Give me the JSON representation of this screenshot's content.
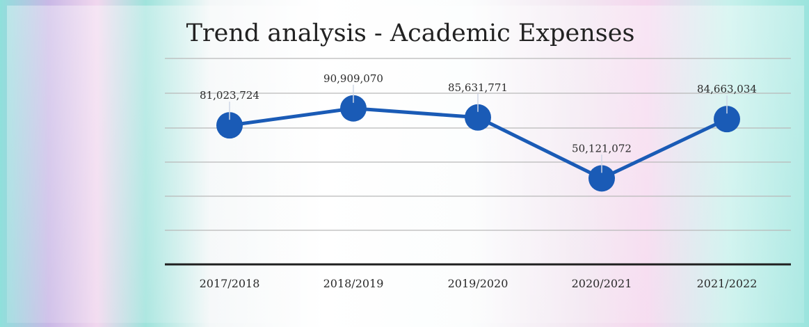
{
  "chart_data": {
    "type": "line",
    "title": "Trend analysis - Academic Expenses",
    "categories": [
      "2017/2018",
      "2018/2019",
      "2019/2020",
      "2020/2021",
      "2021/2022"
    ],
    "values": [
      81023724,
      90909070,
      85631771,
      50121072,
      84663034
    ],
    "value_labels": [
      "81,023,724",
      "90,909,070",
      "85,631,771",
      "50,121,072",
      "84,663,034"
    ],
    "color": "#1a5bb6",
    "grid": true,
    "legend": "none"
  }
}
